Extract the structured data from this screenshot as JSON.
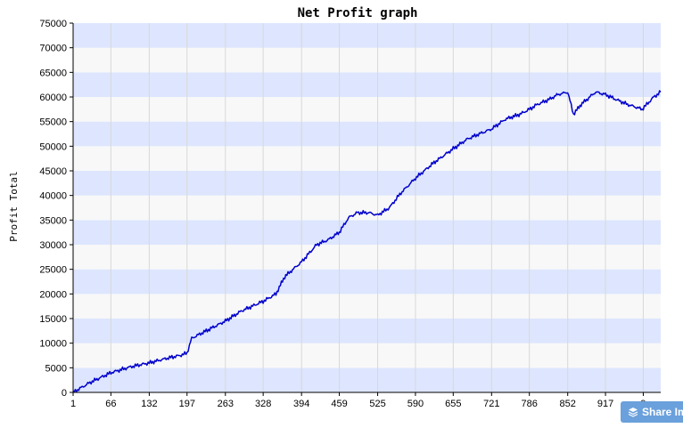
{
  "chart_data": {
    "type": "line",
    "title": "Net Profit graph",
    "xlabel": "",
    "ylabel": "Profit Total",
    "x_ticks": [
      "1",
      "66",
      "132",
      "197",
      "263",
      "328",
      "394",
      "459",
      "525",
      "590",
      "655",
      "721",
      "786",
      "852",
      "917",
      "9"
    ],
    "y_ticks": [
      "0",
      "5000",
      "10000",
      "15000",
      "20000",
      "25000",
      "30000",
      "35000",
      "40000",
      "45000",
      "50000",
      "55000",
      "60000",
      "65000",
      "70000",
      "75000"
    ],
    "xlim": [
      1,
      1012
    ],
    "ylim": [
      0,
      75000
    ],
    "grid": true,
    "legend": "none",
    "series": [
      {
        "color": "#0000cc",
        "x": [
          1,
          30,
          66,
          100,
          132,
          165,
          185,
          197,
          205,
          230,
          263,
          290,
          328,
          350,
          365,
          394,
          420,
          440,
          459,
          475,
          490,
          510,
          525,
          545,
          565,
          590,
          620,
          655,
          680,
          700,
          721,
          745,
          770,
          786,
          800,
          820,
          835,
          852,
          862,
          875,
          900,
          917,
          935,
          955,
          980,
          1000,
          1012
        ],
        "y": [
          0,
          2000,
          4000,
          5200,
          6000,
          7000,
          7500,
          8000,
          11000,
          12500,
          14500,
          16500,
          18500,
          20000,
          23500,
          26500,
          30000,
          31000,
          32500,
          35500,
          36500,
          36500,
          36000,
          37500,
          40500,
          43500,
          46500,
          49500,
          51500,
          52500,
          53500,
          55500,
          56500,
          57500,
          58500,
          59500,
          60500,
          61000,
          56500,
          58500,
          61000,
          60500,
          59500,
          58500,
          57500,
          60000,
          61000
        ]
      }
    ],
    "colors": {
      "band_blue": "#dde6fe",
      "band_light": "#f8f8f8",
      "grid": "#d8d8d8",
      "line": "#0000cc"
    }
  },
  "share_button": {
    "label": "Share Im",
    "icon": "layers-icon"
  }
}
